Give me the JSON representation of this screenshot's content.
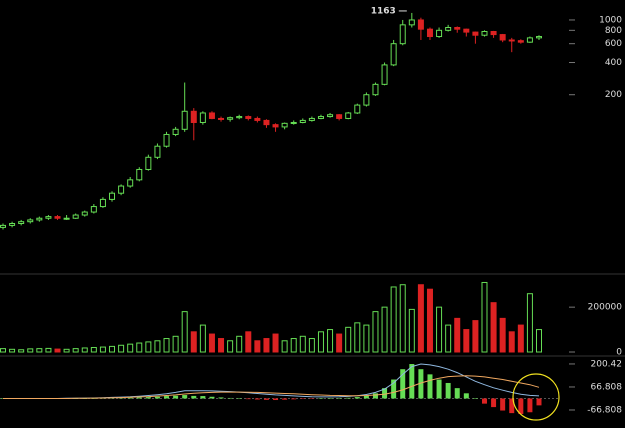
{
  "chart_data": [
    {
      "type": "candlestick",
      "log": true,
      "ylim": [
        4.4,
        1380
      ],
      "yticks": [
        1000,
        800,
        600,
        400,
        200
      ],
      "up_color": "#66dd55",
      "down_color": "#dd2222",
      "annotation": "1163",
      "annotation_index": 45,
      "open": [
        11.5,
        12,
        12.5,
        13,
        13.5,
        14,
        14.5,
        14,
        14,
        15,
        16,
        18,
        21,
        24,
        28,
        32,
        40,
        52,
        66,
        85,
        95,
        140,
        110,
        135,
        120,
        118,
        122,
        125,
        120,
        115,
        105,
        100,
        108,
        110,
        115,
        120,
        125,
        130,
        120,
        135,
        160,
        200,
        250,
        380,
        600,
        900,
        1000,
        820,
        700,
        800,
        850,
        820,
        770,
        720,
        780,
        730,
        650,
        640,
        620,
        680
      ],
      "high": [
        12.5,
        13,
        13.5,
        14,
        14.5,
        15,
        15,
        15,
        15.5,
        16.5,
        19,
        22,
        25,
        29,
        34,
        42,
        55,
        70,
        90,
        100,
        260,
        150,
        140,
        140,
        125,
        125,
        130,
        128,
        125,
        118,
        108,
        110,
        115,
        120,
        125,
        130,
        135,
        132,
        138,
        165,
        210,
        260,
        400,
        650,
        1000,
        1163,
        1050,
        850,
        850,
        900,
        870,
        830,
        780,
        800,
        790,
        740,
        680,
        660,
        700,
        720
      ],
      "low": [
        11,
        11.5,
        12,
        12.5,
        13,
        13.5,
        13.5,
        13.5,
        13.8,
        14.5,
        15.5,
        17.5,
        20,
        23,
        27,
        31,
        39,
        50,
        64,
        82,
        90,
        75,
        105,
        118,
        112,
        112,
        118,
        115,
        110,
        98,
        90,
        95,
        105,
        108,
        112,
        118,
        122,
        115,
        118,
        132,
        155,
        195,
        245,
        370,
        580,
        850,
        650,
        650,
        680,
        780,
        760,
        700,
        600,
        700,
        680,
        620,
        500,
        600,
        610,
        650
      ],
      "close": [
        12,
        12.5,
        13,
        13.5,
        14,
        14.5,
        14,
        14,
        15,
        16,
        18,
        21,
        24,
        28,
        32,
        40,
        52,
        66,
        85,
        95,
        140,
        110,
        135,
        120,
        118,
        122,
        125,
        120,
        115,
        105,
        100,
        108,
        110,
        115,
        120,
        125,
        130,
        120,
        135,
        160,
        200,
        250,
        380,
        600,
        900,
        1000,
        820,
        700,
        800,
        850,
        820,
        770,
        720,
        780,
        730,
        650,
        640,
        620,
        680,
        700
      ]
    },
    {
      "type": "volume",
      "ylim": [
        0,
        330000
      ],
      "yticks": [
        200000,
        0
      ],
      "values": [
        15000,
        12000,
        10000,
        14000,
        15000,
        16000,
        13000,
        12000,
        15000,
        18000,
        20000,
        22000,
        25000,
        30000,
        35000,
        40000,
        45000,
        50000,
        60000,
        70000,
        180000,
        90000,
        120000,
        80000,
        60000,
        50000,
        70000,
        90000,
        50000,
        60000,
        80000,
        50000,
        60000,
        70000,
        60000,
        90000,
        100000,
        80000,
        110000,
        130000,
        120000,
        180000,
        200000,
        290000,
        300000,
        190000,
        300000,
        280000,
        200000,
        120000,
        150000,
        100000,
        140000,
        310000,
        220000,
        150000,
        90000,
        120000,
        260000,
        100000
      ]
    },
    {
      "type": "macd",
      "ylim": [
        -154,
        235
      ],
      "yticks": [
        200.42,
        66.808,
        -66.808
      ],
      "histogram": [
        0,
        0,
        0,
        0,
        0,
        0,
        0,
        0,
        0,
        0,
        1,
        2,
        3,
        4,
        5,
        6,
        8,
        10,
        14,
        16,
        20,
        15,
        14,
        10,
        6,
        3,
        0,
        -4,
        -6,
        -8,
        -9,
        -7,
        -5,
        -3,
        -1,
        0,
        2,
        3,
        4,
        8,
        15,
        30,
        60,
        110,
        170,
        200,
        170,
        140,
        110,
        90,
        60,
        30,
        0,
        -30,
        -50,
        -70,
        -85,
        -90,
        -80,
        -40
      ],
      "lines": [
        {
          "color": "#8fb8e0",
          "values": [
            0,
            0,
            0,
            0,
            0,
            0,
            0,
            1,
            1,
            2,
            3,
            4,
            6,
            8,
            10,
            13,
            17,
            22,
            28,
            35,
            45,
            45,
            45,
            44,
            42,
            40,
            37,
            33,
            29,
            25,
            21,
            18,
            15,
            12,
            10,
            9,
            9,
            10,
            12,
            16,
            23,
            35,
            55,
            90,
            140,
            185,
            200,
            195,
            185,
            170,
            150,
            125,
            100,
            80,
            62,
            48,
            35,
            25,
            18,
            15
          ]
        },
        {
          "color": "#f0a860",
          "values": [
            0,
            0,
            0,
            0,
            0,
            0,
            0,
            0,
            1,
            1,
            2,
            3,
            4,
            5,
            7,
            9,
            11,
            14,
            17,
            21,
            26,
            30,
            33,
            35,
            37,
            37,
            37,
            36,
            35,
            33,
            31,
            29,
            27,
            24,
            22,
            20,
            18,
            17,
            16,
            16,
            17,
            20,
            25,
            35,
            50,
            70,
            90,
            105,
            118,
            127,
            130,
            132,
            130,
            125,
            118,
            110,
            100,
            90,
            80,
            65
          ]
        }
      ]
    }
  ]
}
